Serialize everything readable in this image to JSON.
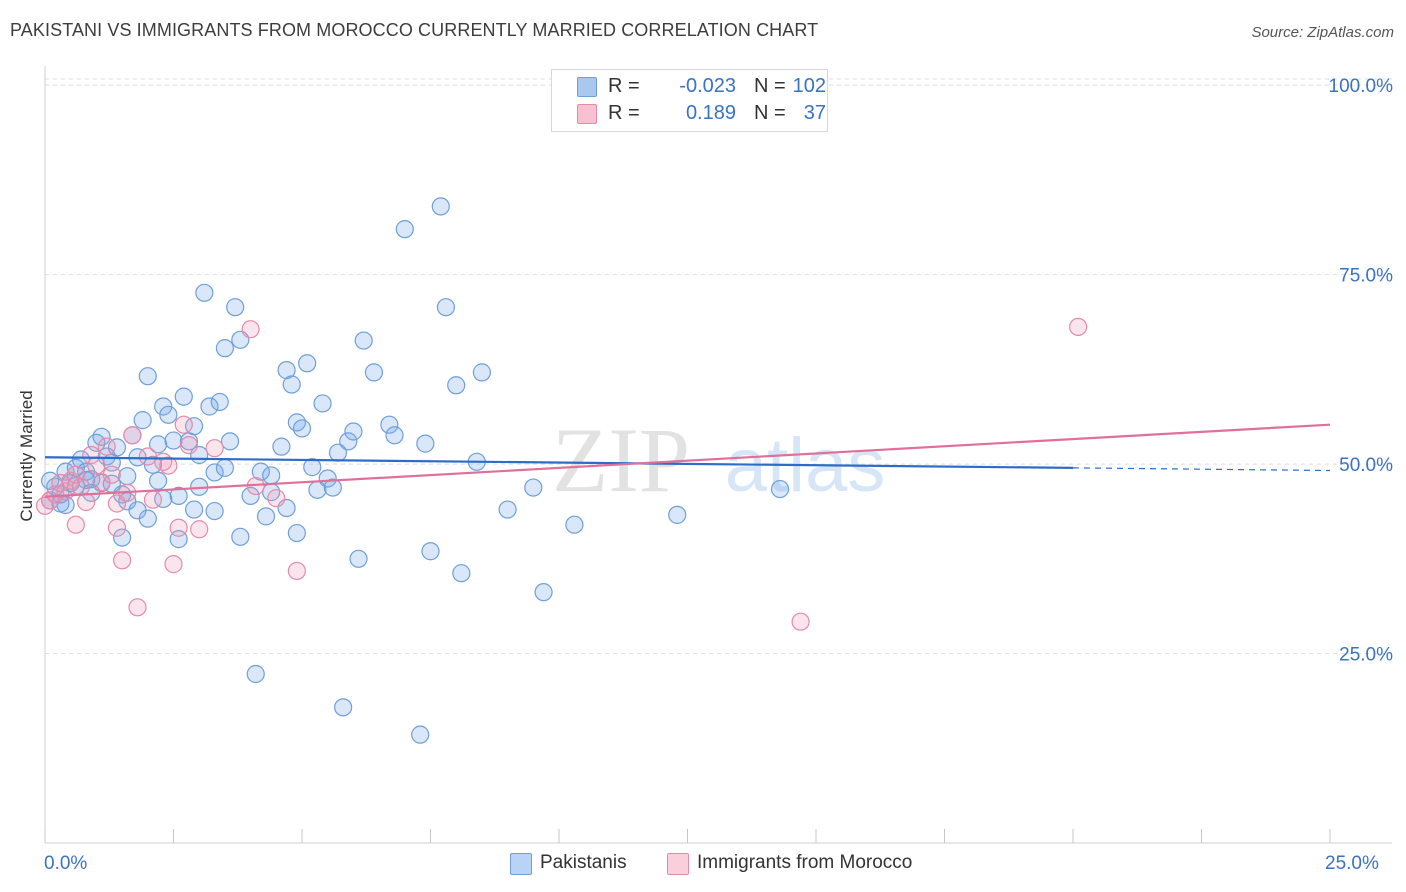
{
  "title": "PAKISTANI VS IMMIGRANTS FROM MOROCCO CURRENTLY MARRIED CORRELATION CHART",
  "source": "Source: ZipAtlas.com",
  "watermark": {
    "zip": "ZIP",
    "atlas": "atlas"
  },
  "legend": {
    "r_label": "R =",
    "n_label": "N =",
    "rows": [
      {
        "r": "-0.023",
        "n": "102",
        "color": "#a9c8f0",
        "border": "#6f9fd9"
      },
      {
        "r": "0.189",
        "n": "37",
        "color": "#f7c1d2",
        "border": "#e58aa8"
      }
    ]
  },
  "bottom_legend": [
    {
      "label": "Pakistanis",
      "color": "#b8d3f5",
      "border": "#6f9fd9"
    },
    {
      "label": "Immigrants from Morocco",
      "color": "#f9cfdc",
      "border": "#e58aa8"
    }
  ],
  "chart_data": {
    "type": "scatter",
    "xlabel": "",
    "ylabel": "Currently Married",
    "xlim": [
      0,
      25
    ],
    "ylim": [
      0,
      102
    ],
    "x_tick_labels": [
      "0.0%",
      "25.0%"
    ],
    "y_ticks": [
      25,
      50,
      75,
      100
    ],
    "y_tick_labels": [
      "25.0%",
      "50.0%",
      "75.0%",
      "100.0%"
    ],
    "grid": true,
    "series": [
      {
        "name": "Pakistanis",
        "color": "#6f9fd9",
        "fill": "rgba(120,170,235,0.28)",
        "trend": {
          "x1": 0.0,
          "y1": 50.9,
          "x2": 20.0,
          "y2": 49.5,
          "dash_to_x": 25.0,
          "line_color": "#2d6cc8"
        },
        "points": [
          [
            0.1,
            45.2
          ],
          [
            0.2,
            47.0
          ],
          [
            0.3,
            44.8
          ],
          [
            0.4,
            49.0
          ],
          [
            0.5,
            47.5
          ],
          [
            0.6,
            49.5
          ],
          [
            0.7,
            50.6
          ],
          [
            0.8,
            49.0
          ],
          [
            0.9,
            48.0
          ],
          [
            1.0,
            52.8
          ],
          [
            1.1,
            53.6
          ],
          [
            1.2,
            51.0
          ],
          [
            1.3,
            47.4
          ],
          [
            1.4,
            52.2
          ],
          [
            1.5,
            46.0
          ],
          [
            1.6,
            48.4
          ],
          [
            1.7,
            53.8
          ],
          [
            1.8,
            50.9
          ],
          [
            1.9,
            55.8
          ],
          [
            2.0,
            61.6
          ],
          [
            2.1,
            49.9
          ],
          [
            2.2,
            52.6
          ],
          [
            2.3,
            57.6
          ],
          [
            2.4,
            56.5
          ],
          [
            2.5,
            53.1
          ],
          [
            2.6,
            45.8
          ],
          [
            2.7,
            58.9
          ],
          [
            2.8,
            53.0
          ],
          [
            2.9,
            55.0
          ],
          [
            3.0,
            51.2
          ],
          [
            3.1,
            72.6
          ],
          [
            3.2,
            57.6
          ],
          [
            3.3,
            48.9
          ],
          [
            3.4,
            58.2
          ],
          [
            3.5,
            65.3
          ],
          [
            3.6,
            53.0
          ],
          [
            3.7,
            70.7
          ],
          [
            3.8,
            66.4
          ],
          [
            4.0,
            45.8
          ],
          [
            4.1,
            22.3
          ],
          [
            4.2,
            49.0
          ],
          [
            4.3,
            43.1
          ],
          [
            4.4,
            48.5
          ],
          [
            4.6,
            52.3
          ],
          [
            4.7,
            62.4
          ],
          [
            4.8,
            60.5
          ],
          [
            4.9,
            55.5
          ],
          [
            5.0,
            54.7
          ],
          [
            5.1,
            63.3
          ],
          [
            5.3,
            46.6
          ],
          [
            5.4,
            58.0
          ],
          [
            5.5,
            48.1
          ],
          [
            5.6,
            46.9
          ],
          [
            5.7,
            51.5
          ],
          [
            5.8,
            17.9
          ],
          [
            5.9,
            53.0
          ],
          [
            6.0,
            54.3
          ],
          [
            6.1,
            37.5
          ],
          [
            6.2,
            66.3
          ],
          [
            6.4,
            62.1
          ],
          [
            6.7,
            55.2
          ],
          [
            6.8,
            53.8
          ],
          [
            7.0,
            81.0
          ],
          [
            7.3,
            14.3
          ],
          [
            7.4,
            52.7
          ],
          [
            7.5,
            38.5
          ],
          [
            7.7,
            84.0
          ],
          [
            7.8,
            70.7
          ],
          [
            8.0,
            60.4
          ],
          [
            8.1,
            35.6
          ],
          [
            8.4,
            50.3
          ],
          [
            8.5,
            62.1
          ],
          [
            9.0,
            44.0
          ],
          [
            9.5,
            46.9
          ],
          [
            9.7,
            33.1
          ],
          [
            10.3,
            42.0
          ],
          [
            12.3,
            43.3
          ],
          [
            14.3,
            46.7
          ],
          [
            1.5,
            40.3
          ],
          [
            2.6,
            40.1
          ],
          [
            2.9,
            44.0
          ],
          [
            3.3,
            43.8
          ],
          [
            4.7,
            44.2
          ],
          [
            1.8,
            43.9
          ],
          [
            2.3,
            45.4
          ],
          [
            3.5,
            49.5
          ],
          [
            0.1,
            47.8
          ],
          [
            0.3,
            46.0
          ],
          [
            0.6,
            47.1
          ],
          [
            0.9,
            46.2
          ],
          [
            1.1,
            47.5
          ],
          [
            4.4,
            46.3
          ],
          [
            3.0,
            47.0
          ],
          [
            0.4,
            44.6
          ],
          [
            1.6,
            45.1
          ],
          [
            2.0,
            42.8
          ],
          [
            3.8,
            40.4
          ],
          [
            4.9,
            40.9
          ],
          [
            0.8,
            47.9
          ],
          [
            1.3,
            50.2
          ],
          [
            2.2,
            47.8
          ],
          [
            5.2,
            49.6
          ]
        ]
      },
      {
        "name": "Immigrants from Morocco",
        "color": "#e58aa8",
        "fill": "rgba(240,150,180,0.25)",
        "trend": {
          "x1": 0.0,
          "y1": 45.7,
          "x2": 25.0,
          "y2": 55.2,
          "line_color": "#e07099"
        },
        "points": [
          [
            0.0,
            44.5
          ],
          [
            0.1,
            45.2
          ],
          [
            0.2,
            46.0
          ],
          [
            0.3,
            47.5
          ],
          [
            0.4,
            46.4
          ],
          [
            0.5,
            47.8
          ],
          [
            0.6,
            48.6
          ],
          [
            0.7,
            47.0
          ],
          [
            0.8,
            45.0
          ],
          [
            0.9,
            51.2
          ],
          [
            1.0,
            49.8
          ],
          [
            1.1,
            47.6
          ],
          [
            1.2,
            52.3
          ],
          [
            1.3,
            48.6
          ],
          [
            1.4,
            44.8
          ],
          [
            1.5,
            37.3
          ],
          [
            1.6,
            46.2
          ],
          [
            1.7,
            53.8
          ],
          [
            1.8,
            31.1
          ],
          [
            2.0,
            51.0
          ],
          [
            2.1,
            45.3
          ],
          [
            2.3,
            50.3
          ],
          [
            2.5,
            36.8
          ],
          [
            2.6,
            41.6
          ],
          [
            2.7,
            55.2
          ],
          [
            2.8,
            52.5
          ],
          [
            3.3,
            52.1
          ],
          [
            4.0,
            67.8
          ],
          [
            4.1,
            47.1
          ],
          [
            4.5,
            45.5
          ],
          [
            4.9,
            35.9
          ],
          [
            14.7,
            29.2
          ],
          [
            20.1,
            68.1
          ],
          [
            0.6,
            42.0
          ],
          [
            1.4,
            41.6
          ],
          [
            3.0,
            41.4
          ],
          [
            2.4,
            49.8
          ]
        ]
      }
    ]
  }
}
